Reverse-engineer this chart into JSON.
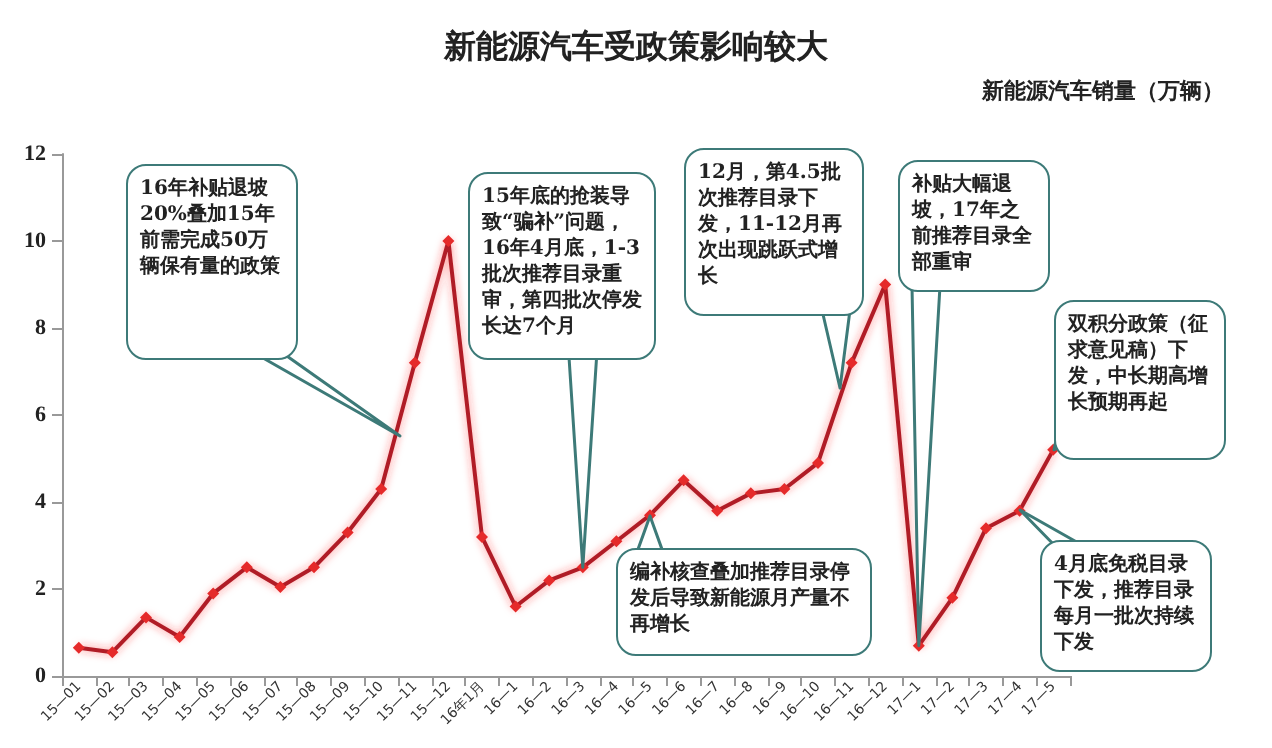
{
  "chart_data": {
    "type": "line",
    "title": "新能源汽车受政策影响较大",
    "ylabel": "新能源汽车销量（万辆）",
    "categories": [
      "15—01",
      "15—02",
      "15—03",
      "15—04",
      "15—05",
      "15—06",
      "15—07",
      "15—08",
      "15—09",
      "15—10",
      "15—11",
      "15—12",
      "16年1月",
      "16—1",
      "16—2",
      "16—3",
      "16—4",
      "16—5",
      "16—6",
      "16—7",
      "16—8",
      "16—9",
      "16—10",
      "16—11",
      "16—12",
      "17—1",
      "17—2",
      "17—3",
      "17—4",
      "17—5"
    ],
    "series": [
      {
        "color": "#b01e28",
        "values": [
          0.65,
          0.55,
          1.35,
          0.9,
          1.9,
          2.5,
          2.05,
          2.5,
          3.3,
          4.3,
          7.2,
          10.0,
          3.2,
          1.6,
          2.2,
          2.5,
          3.1,
          3.7,
          4.5,
          3.8,
          4.2,
          4.3,
          4.9,
          7.2,
          9.0,
          0.7,
          1.8,
          3.4,
          3.8,
          5.2
        ]
      }
    ],
    "ylim": [
      0,
      12
    ],
    "yticks": [
      0,
      2,
      4,
      6,
      8,
      10,
      12
    ],
    "grid": false,
    "marker": "diamond",
    "line_style": "solid",
    "annotations": [
      "16年补贴退坡20%叠加15年前需完成50万辆保有量的政策",
      {
        "text": "15年底的抢装导致“骗补”问题，16年4月底，1-3批次推荐目录重审，第四批次停发长达7个月",
        "x": "16—3",
        "y": 2.5
      },
      {
        "text": "编补核查叠加推荐目录停发后导致新能源月产量不再增长",
        "x": "16—5",
        "y": 3.7
      },
      "12月，第4.5批次推荐目录下发，11-12月再次出现跳跃式增长",
      {
        "text": "补贴大幅退坡，17年之前推荐目录全部重审",
        "x": "17—1",
        "y": 0.7
      },
      {
        "text": "双积分政策（征求意见稿）下发，中长期高增长预期再起",
        "x": "17—5",
        "y": 5.2
      },
      {
        "text": "4月底免税目录下发，推荐目录每月一批次持续下发",
        "x": "17—4",
        "y": 3.8
      }
    ]
  }
}
